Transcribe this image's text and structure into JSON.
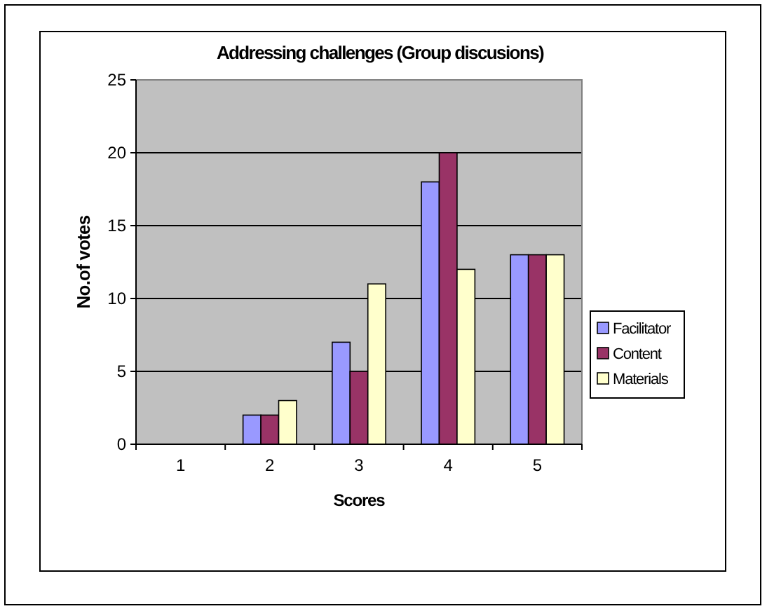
{
  "chart_data": {
    "type": "bar",
    "title": "Addressing challenges (Group discusions)",
    "xlabel": "Scores",
    "ylabel": "No.of votes",
    "categories": [
      "1",
      "2",
      "3",
      "4",
      "5"
    ],
    "series": [
      {
        "name": "Facilitator",
        "color": "#9999ff",
        "values": [
          0,
          2,
          7,
          18,
          13
        ]
      },
      {
        "name": "Content",
        "color": "#993366",
        "values": [
          0,
          2,
          5,
          20,
          13
        ]
      },
      {
        "name": "Materials",
        "color": "#ffffcc",
        "values": [
          0,
          3,
          11,
          12,
          13
        ]
      }
    ],
    "ylim": [
      0,
      25
    ],
    "yticks": [
      0,
      5,
      10,
      15,
      20,
      25
    ],
    "grid": "y",
    "legend": "right"
  }
}
